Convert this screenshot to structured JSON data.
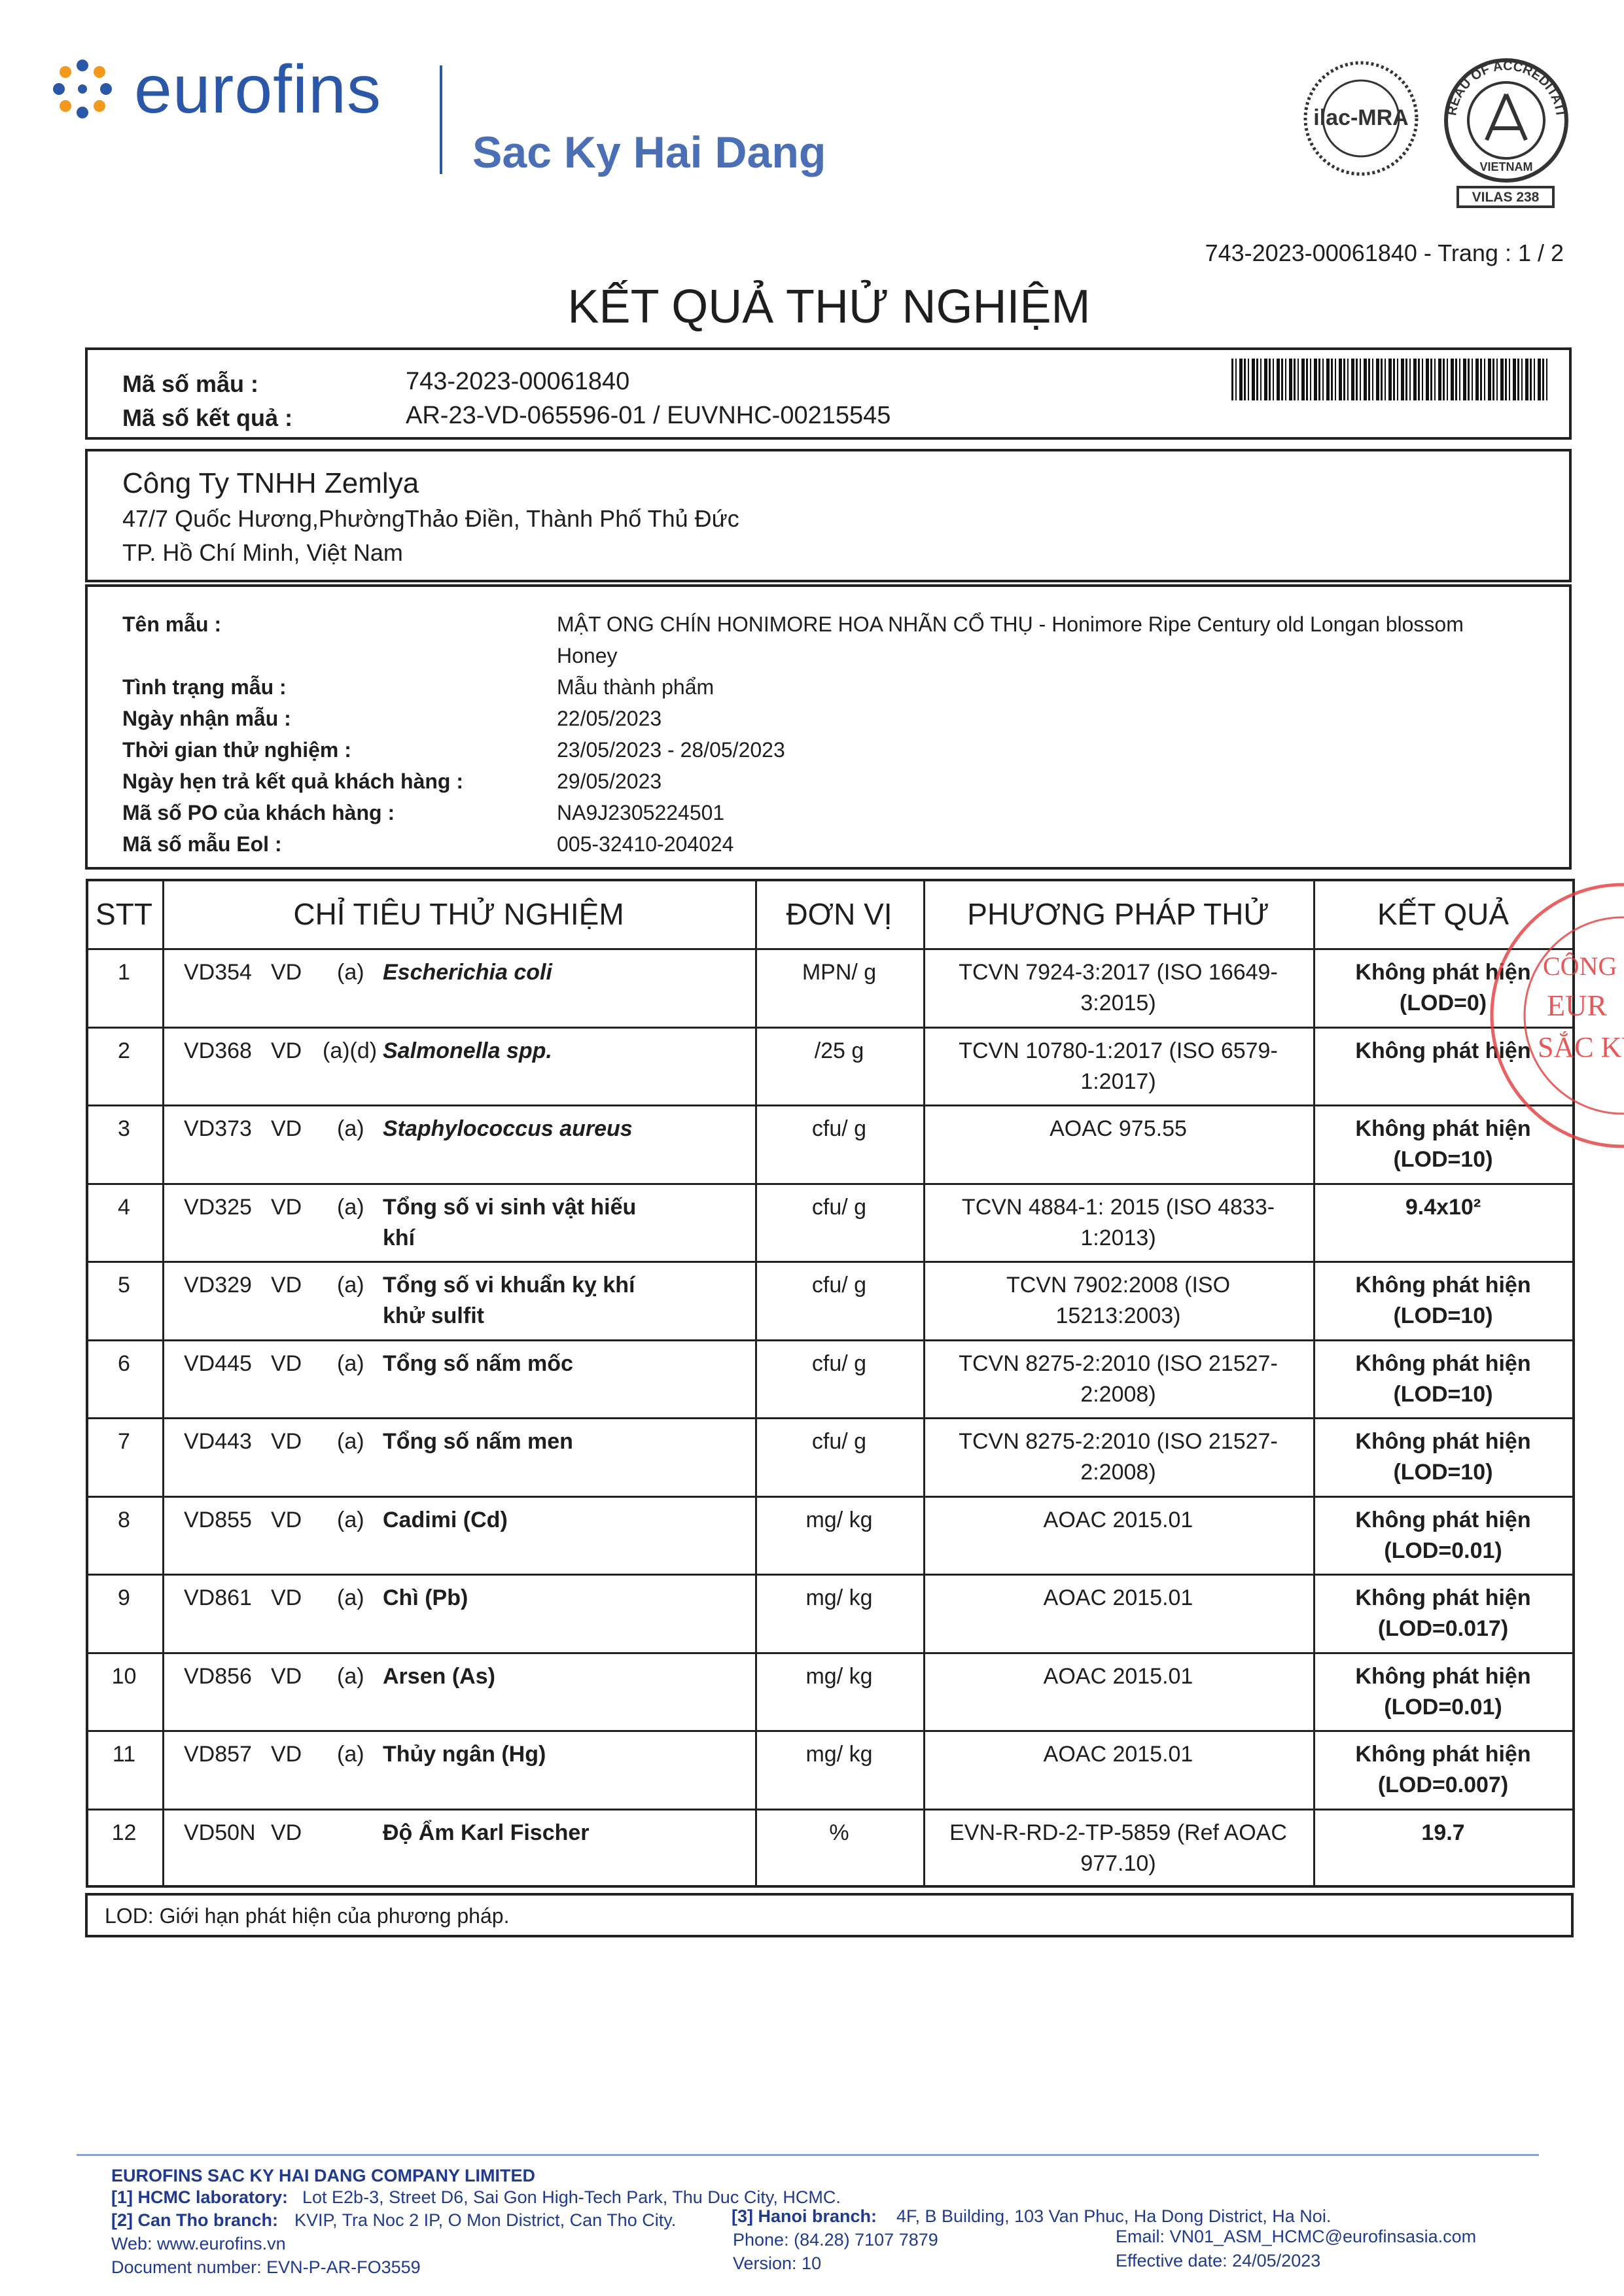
{
  "header": {
    "logo": "eurofins",
    "company": "Sac Ky Hai Dang",
    "seal_ilac": "ilac-MRA",
    "seal_boa": "BUREAU OF ACCREDITATION",
    "seal_country": "VIETNAM",
    "vilas": "VILAS 238",
    "page_ref": "743-2023-00061840 - Trang : 1 / 2",
    "title": "KẾT QUẢ THỬ NGHIỆM"
  },
  "ids": [
    {
      "label": "Mã số mẫu :",
      "value": "743-2023-00061840"
    },
    {
      "label": "Mã số kết quả :",
      "value": "AR-23-VD-065596-01 / EUVNHC-00215545"
    }
  ],
  "customer": {
    "name": "Công Ty TNHH Zemlya",
    "address": [
      "47/7 Quốc Hương,PhườngThảo Điền, Thành Phố Thủ Đức",
      "TP. Hồ Chí Minh, Việt Nam"
    ]
  },
  "sample": [
    {
      "label": "Tên mẫu :",
      "value": "MẬT ONG CHÍN HONIMORE HOA NHÃN CỔ THỤ - Honimore Ripe Century old Longan blossom Honey"
    },
    {
      "label": "Tình trạng mẫu :",
      "value": "Mẫu thành phẩm"
    },
    {
      "label": "Ngày nhận mẫu :",
      "value": "22/05/2023"
    },
    {
      "label": "Thời gian thử nghiệm :",
      "value": "23/05/2023 - 28/05/2023"
    },
    {
      "label": "Ngày hẹn trả kết quả khách hàng :",
      "value": "29/05/2023"
    },
    {
      "label": "Mã số PO của khách hàng :",
      "value": "NA9J2305224501"
    },
    {
      "label": "Mã số mẫu Eol :",
      "value": "005-32410-204024"
    }
  ],
  "table": {
    "headers": [
      "STT",
      "CHỈ TIÊU THỬ NGHIỆM",
      "ĐƠN VỊ",
      "PHƯƠNG PHÁP THỬ",
      "KẾT QUẢ"
    ],
    "rows": [
      {
        "no": "1",
        "code": "VD354",
        "lab": "VD",
        "flag": "(a)",
        "name": "Escherichia coli",
        "italic": true,
        "unit": "MPN/ g",
        "method": "TCVN 7924-3:2017 (ISO 16649-3:2015)",
        "result": "Không phát hiện (LOD=0)"
      },
      {
        "no": "2",
        "code": "VD368",
        "lab": "VD",
        "flag": "(a)(d)",
        "name": "Salmonella spp.",
        "italic": true,
        "unit": "/25 g",
        "method": "TCVN 10780-1:2017 (ISO 6579-1:2017)",
        "result": "Không phát hiện"
      },
      {
        "no": "3",
        "code": "VD373",
        "lab": "VD",
        "flag": "(a)",
        "name": "Staphylococcus aureus",
        "italic": true,
        "unit": "cfu/ g",
        "method": "AOAC 975.55",
        "result": "Không phát hiện (LOD=10)"
      },
      {
        "no": "4",
        "code": "VD325",
        "lab": "VD",
        "flag": "(a)",
        "name": "Tổng số vi sinh vật hiếu khí",
        "unit": "cfu/ g",
        "method": "TCVN 4884-1: 2015 (ISO 4833-1:2013)",
        "result": "9.4x10²"
      },
      {
        "no": "5",
        "code": "VD329",
        "lab": "VD",
        "flag": "(a)",
        "name": "Tổng số vi khuẩn kỵ khí khử sulfit",
        "unit": "cfu/ g",
        "method": "TCVN 7902:2008 (ISO 15213:2003)",
        "result": "Không phát hiện (LOD=10)"
      },
      {
        "no": "6",
        "code": "VD445",
        "lab": "VD",
        "flag": "(a)",
        "name": "Tổng số nấm mốc",
        "unit": "cfu/ g",
        "method": "TCVN 8275-2:2010 (ISO 21527-2:2008)",
        "result": "Không phát hiện (LOD=10)"
      },
      {
        "no": "7",
        "code": "VD443",
        "lab": "VD",
        "flag": "(a)",
        "name": "Tổng số nấm men",
        "unit": "cfu/ g",
        "method": "TCVN 8275-2:2010 (ISO 21527-2:2008)",
        "result": "Không phát hiện (LOD=10)"
      },
      {
        "no": "8",
        "code": "VD855",
        "lab": "VD",
        "flag": "(a)",
        "name": "Cadimi (Cd)",
        "unit": "mg/ kg",
        "method": "AOAC 2015.01",
        "result": "Không phát hiện (LOD=0.01)"
      },
      {
        "no": "9",
        "code": "VD861",
        "lab": "VD",
        "flag": "(a)",
        "name": "Chì (Pb)",
        "unit": "mg/ kg",
        "method": "AOAC 2015.01",
        "result": "Không phát hiện (LOD=0.017)"
      },
      {
        "no": "10",
        "code": "VD856",
        "lab": "VD",
        "flag": "(a)",
        "name": "Arsen (As)",
        "unit": "mg/ kg",
        "method": "AOAC 2015.01",
        "result": "Không phát hiện (LOD=0.01)"
      },
      {
        "no": "11",
        "code": "VD857",
        "lab": "VD",
        "flag": "(a)",
        "name": "Thủy ngân (Hg)",
        "unit": "mg/ kg",
        "method": "AOAC 2015.01",
        "result": "Không phát hiện (LOD=0.007)"
      },
      {
        "no": "12",
        "code": "VD50N",
        "lab": "VD",
        "name": "Độ Ẩm Karl Fischer",
        "unit": "%",
        "method": "EVN-R-RD-2-TP-5859 (Ref AOAC 977.10)",
        "result": "19.7"
      }
    ]
  },
  "note": "LOD: Giới hạn phát hiện của phương pháp.",
  "stamp": [
    "CÔNG",
    "EUR",
    "SẮC KÝ"
  ],
  "footer": {
    "company": "EUROFINS SAC KY HAI DANG COMPANY LIMITED",
    "hcmc_label": "[1] HCMC laboratory:",
    "hcmc": "Lot E2b-3, Street D6, Sai Gon High-Tech Park, Thu Duc City, HCMC.",
    "cantho_label": "[2] Can Tho branch:",
    "cantho": "KVIP, Tra Noc 2 IP, O Mon District, Can Tho City.",
    "hanoi_label": "[3] Hanoi branch:",
    "hanoi": "4F, B Building, 103 Van Phuc, Ha Dong District, Ha Noi.",
    "web": "Web: www.eurofins.vn",
    "phone": "Phone: (84.28) 7107 7879",
    "email": "Email: VN01_ASM_HCMC@eurofinsasia.com",
    "doc_number": "Document number: EVN-P-AR-FO3559",
    "version": "Version: 10",
    "effective": "Effective date: 24/05/2023"
  }
}
